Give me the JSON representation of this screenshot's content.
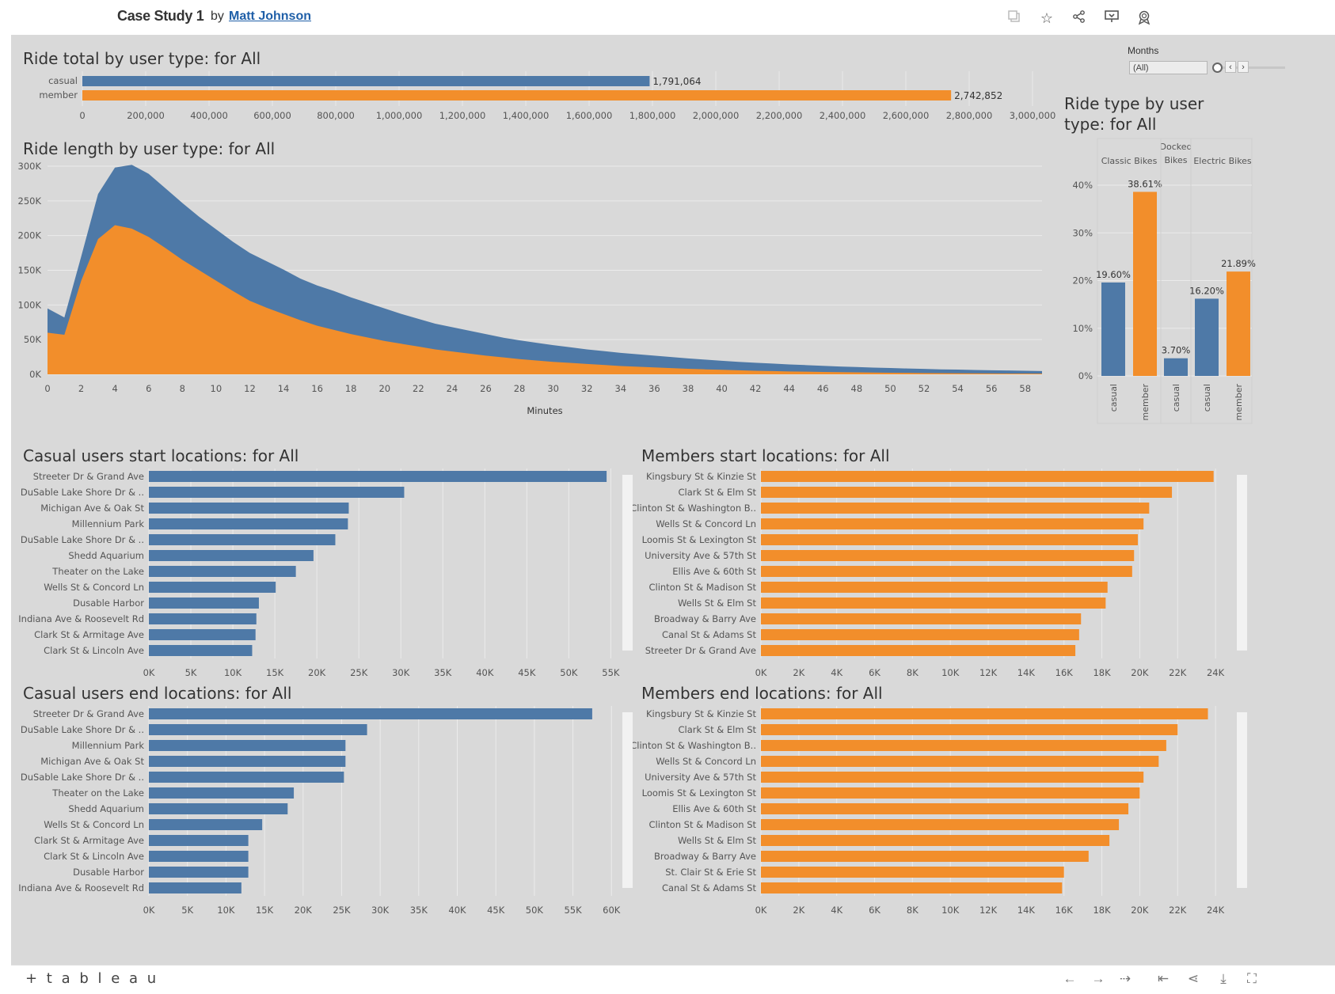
{
  "header": {
    "title": "Case Study 1",
    "by": "by",
    "author": "Matt Johnson"
  },
  "filter": {
    "label": "Months",
    "value": "(All)"
  },
  "colors": {
    "casual": "#4e79a7",
    "member": "#f28e2b"
  },
  "icons": [
    "copy-icon",
    "star-icon",
    "share-icon",
    "comment-icon",
    "badge-icon"
  ],
  "footer": {
    "logo": "+ t a b l e a u",
    "icons": [
      "undo-icon",
      "redo-icon",
      "revert-icon",
      "reset-icon",
      "share-icon",
      "download-icon",
      "fullscreen-icon"
    ]
  },
  "chart_data": [
    {
      "id": "total",
      "type": "bar",
      "title": "Ride total by user type: for All",
      "categories": [
        "casual",
        "member"
      ],
      "values": [
        1791064,
        2742852
      ],
      "value_labels": [
        "1,791,064",
        "2,742,852"
      ],
      "xlim": [
        0,
        3000000
      ],
      "ticks": [
        0,
        200000,
        400000,
        600000,
        800000,
        1000000,
        1200000,
        1400000,
        1600000,
        1800000,
        2000000,
        2200000,
        2400000,
        2600000,
        2800000,
        3000000
      ],
      "tick_labels": [
        "0",
        "200,000",
        "400,000",
        "600,000",
        "800,000",
        "1,000,000",
        "1,200,000",
        "1,400,000",
        "1,600,000",
        "1,800,000",
        "2,000,000",
        "2,200,000",
        "2,400,000",
        "2,600,000",
        "2,800,000",
        "3,000,000"
      ]
    },
    {
      "id": "length",
      "type": "area",
      "title": "Ride length by user type: for All",
      "xlabel": "Minutes",
      "xlim": [
        0,
        59
      ],
      "ylim": [
        0,
        300000
      ],
      "x": [
        0,
        1,
        2,
        3,
        4,
        5,
        6,
        7,
        8,
        9,
        10,
        11,
        12,
        13,
        14,
        15,
        16,
        17,
        18,
        19,
        20,
        21,
        22,
        23,
        24,
        25,
        26,
        27,
        28,
        29,
        30,
        31,
        32,
        33,
        34,
        35,
        36,
        37,
        38,
        39,
        40,
        41,
        42,
        43,
        44,
        45,
        46,
        47,
        48,
        49,
        50,
        51,
        52,
        53,
        54,
        55,
        56,
        57,
        58,
        59
      ],
      "series": [
        {
          "name": "member",
          "values": [
            60000,
            57000,
            135000,
            195000,
            215000,
            210000,
            198000,
            182000,
            165000,
            150000,
            135000,
            120000,
            106000,
            96000,
            87000,
            78000,
            70000,
            64000,
            58000,
            53000,
            48000,
            44000,
            40000,
            36000,
            33000,
            30000,
            27000,
            24500,
            22000,
            20000,
            18000,
            16500,
            15000,
            13500,
            12000,
            11000,
            10000,
            9000,
            8000,
            7200,
            6500,
            5800,
            5200,
            4700,
            4200,
            3800,
            3400,
            3100,
            2800,
            2500,
            2300,
            2100,
            1900,
            1700,
            1600,
            1400,
            1300,
            1200,
            1100,
            1000
          ]
        },
        {
          "name": "casual",
          "values": [
            35000,
            25000,
            35000,
            65000,
            83000,
            92000,
            91000,
            86000,
            82000,
            77000,
            74000,
            71000,
            69000,
            67000,
            64000,
            60000,
            58000,
            56000,
            53000,
            50000,
            47000,
            43000,
            40000,
            37000,
            35000,
            33000,
            31000,
            28500,
            27000,
            25500,
            24000,
            22500,
            21000,
            20000,
            19000,
            18000,
            17000,
            16000,
            15000,
            14000,
            13000,
            12200,
            11500,
            10800,
            10100,
            9500,
            8800,
            8200,
            7800,
            7200,
            6800,
            6300,
            5900,
            5500,
            5200,
            4900,
            4600,
            4300,
            4000,
            3700
          ]
        }
      ],
      "xticks": [
        0,
        2,
        4,
        6,
        8,
        10,
        12,
        14,
        16,
        18,
        20,
        22,
        24,
        26,
        28,
        30,
        32,
        34,
        36,
        38,
        40,
        42,
        44,
        46,
        48,
        50,
        52,
        54,
        56,
        58
      ],
      "yticks": [
        0,
        50000,
        100000,
        150000,
        200000,
        250000,
        300000
      ],
      "ytick_labels": [
        "0K",
        "50K",
        "100K",
        "150K",
        "200K",
        "250K",
        "300K"
      ]
    },
    {
      "id": "ridetype",
      "type": "bar",
      "title": "Ride type by user type: for All",
      "groups": [
        {
          "label": [
            "Classic Bikes"
          ],
          "bars": [
            {
              "user": "casual",
              "value": 19.6,
              "label": "19.60%"
            },
            {
              "user": "member",
              "value": 38.61,
              "label": "38.61%"
            }
          ]
        },
        {
          "label": [
            "Docked",
            "Bikes"
          ],
          "bars": [
            {
              "user": "casual",
              "value": 3.7,
              "label": "3.70%"
            }
          ]
        },
        {
          "label": [
            "Electric Bikes"
          ],
          "bars": [
            {
              "user": "casual",
              "value": 16.2,
              "label": "16.20%"
            },
            {
              "user": "member",
              "value": 21.89,
              "label": "21.89%"
            }
          ]
        }
      ],
      "ylim": [
        0,
        42
      ],
      "yticks": [
        0,
        10,
        20,
        30,
        40
      ],
      "ytick_labels": [
        "0%",
        "10%",
        "20%",
        "30%",
        "40%"
      ]
    },
    {
      "id": "casual_start",
      "type": "bar",
      "title": "Casual users start locations: for All",
      "categories": [
        "Streeter Dr & Grand Ave",
        "DuSable Lake Shore Dr & ..",
        "Michigan Ave & Oak St",
        "Millennium Park",
        "DuSable Lake Shore Dr & ..",
        "Shedd Aquarium",
        "Theater on the Lake",
        "Wells St & Concord Ln",
        "Dusable Harbor",
        "Indiana Ave & Roosevelt Rd",
        "Clark St & Armitage Ave",
        "Clark St & Lincoln Ave"
      ],
      "values": [
        54500,
        30400,
        23800,
        23700,
        22200,
        19600,
        17500,
        15100,
        13100,
        12800,
        12700,
        12300
      ],
      "xlim": [
        0,
        56000
      ],
      "ticks": [
        0,
        5000,
        10000,
        15000,
        20000,
        25000,
        30000,
        35000,
        40000,
        45000,
        50000,
        55000
      ],
      "tick_labels": [
        "0K",
        "5K",
        "10K",
        "15K",
        "20K",
        "25K",
        "30K",
        "35K",
        "40K",
        "45K",
        "50K",
        "55K"
      ]
    },
    {
      "id": "member_start",
      "type": "bar",
      "title": "Members start locations: for All",
      "categories": [
        "Kingsbury St & Kinzie St",
        "Clark St & Elm St",
        "Clinton St & Washington B..",
        "Wells St & Concord Ln",
        "Loomis St & Lexington St",
        "University Ave & 57th St",
        "Ellis Ave & 60th St",
        "Clinton St & Madison St",
        "Wells St & Elm St",
        "Broadway & Barry Ave",
        "Canal St & Adams St",
        "Streeter Dr & Grand Ave"
      ],
      "values": [
        23900,
        21700,
        20500,
        20200,
        19900,
        19700,
        19600,
        18300,
        18200,
        16900,
        16800,
        16600
      ],
      "xlim": [
        0,
        25000
      ],
      "ticks": [
        0,
        2000,
        4000,
        6000,
        8000,
        10000,
        12000,
        14000,
        16000,
        18000,
        20000,
        22000,
        24000
      ],
      "tick_labels": [
        "0K",
        "2K",
        "4K",
        "6K",
        "8K",
        "10K",
        "12K",
        "14K",
        "16K",
        "18K",
        "20K",
        "22K",
        "24K"
      ]
    },
    {
      "id": "casual_end",
      "type": "bar",
      "title": "Casual users end locations: for All",
      "categories": [
        "Streeter Dr & Grand Ave",
        "DuSable Lake Shore Dr & ..",
        "Millennium Park",
        "Michigan Ave & Oak St",
        "DuSable Lake Shore Dr & ..",
        "Theater on the Lake",
        "Shedd Aquarium",
        "Wells St & Concord Ln",
        "Clark St & Armitage Ave",
        "Clark St & Lincoln Ave",
        "Dusable Harbor",
        "Indiana Ave & Roosevelt Rd"
      ],
      "values": [
        57500,
        28300,
        25500,
        25500,
        25300,
        18800,
        18000,
        14700,
        12900,
        12900,
        12900,
        12000
      ],
      "xlim": [
        0,
        61000
      ],
      "ticks": [
        0,
        5000,
        10000,
        15000,
        20000,
        25000,
        30000,
        35000,
        40000,
        45000,
        50000,
        55000,
        60000
      ],
      "tick_labels": [
        "0K",
        "5K",
        "10K",
        "15K",
        "20K",
        "25K",
        "30K",
        "35K",
        "40K",
        "45K",
        "50K",
        "55K",
        "60K"
      ]
    },
    {
      "id": "member_end",
      "type": "bar",
      "title": "Members end locations: for All",
      "categories": [
        "Kingsbury St & Kinzie St",
        "Clark St & Elm St",
        "Clinton St & Washington B..",
        "Wells St & Concord Ln",
        "University Ave & 57th St",
        "Loomis St & Lexington St",
        "Ellis Ave & 60th St",
        "Clinton St & Madison St",
        "Wells St & Elm St",
        "Broadway & Barry Ave",
        "St. Clair St & Erie St",
        "Canal St & Adams St"
      ],
      "values": [
        23600,
        22000,
        21400,
        21000,
        20200,
        20000,
        19400,
        18900,
        18400,
        17300,
        16000,
        15900
      ],
      "xlim": [
        0,
        25000
      ],
      "ticks": [
        0,
        2000,
        4000,
        6000,
        8000,
        10000,
        12000,
        14000,
        16000,
        18000,
        20000,
        22000,
        24000
      ],
      "tick_labels": [
        "0K",
        "2K",
        "4K",
        "6K",
        "8K",
        "10K",
        "12K",
        "14K",
        "16K",
        "18K",
        "20K",
        "22K",
        "24K"
      ]
    }
  ]
}
